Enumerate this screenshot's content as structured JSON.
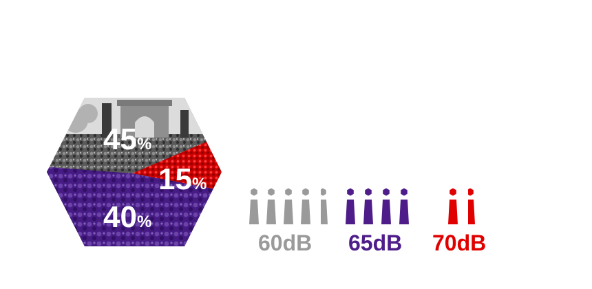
{
  "colors": {
    "gray": "#9a9a9a",
    "purple": "#4e1d8a",
    "red": "#e00000",
    "white": "#ffffff"
  },
  "hexagon": {
    "segments": [
      {
        "value": "45",
        "unit": "%",
        "color": "#8a8a8a",
        "share": 45
      },
      {
        "value": "15",
        "unit": "%",
        "color": "#e00000",
        "share": 15
      },
      {
        "value": "40",
        "unit": "%",
        "color": "#4e1d8a",
        "share": 40
      }
    ]
  },
  "levels": [
    {
      "label": "60dB",
      "color": "#9a9a9a",
      "icon": "person-icon",
      "count": 5
    },
    {
      "label": "65dB",
      "color": "#4e1d8a",
      "icon": "person-icon",
      "count": 4
    },
    {
      "label": "70dB",
      "color": "#e00000",
      "icon": "person-icon",
      "count": 2
    }
  ]
}
